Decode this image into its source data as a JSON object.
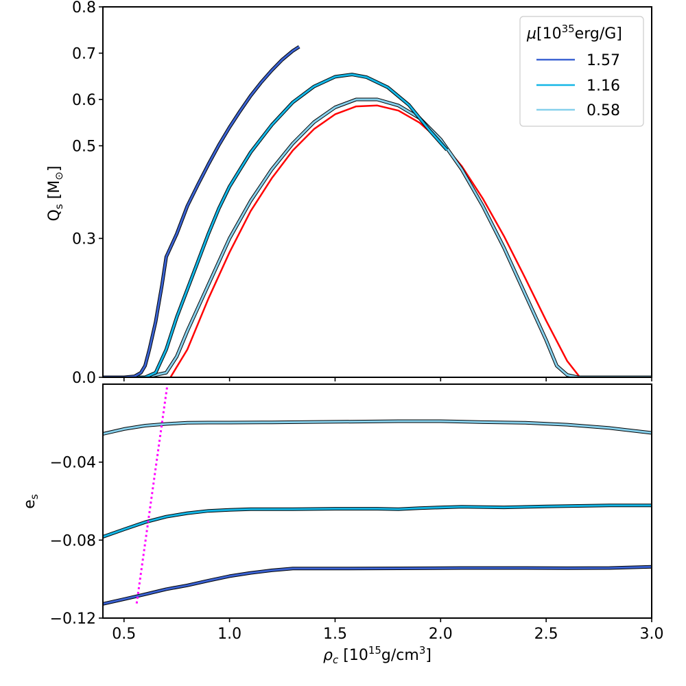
{
  "colors": {
    "dark_blue": "#3a62d2",
    "mid_blue": "#14b6e6",
    "light_blue": "#86d0ec",
    "red": "#ff0000",
    "magenta": "#ff00ff",
    "outline": "#000000"
  },
  "shared": {
    "xlabel_main": "ρ",
    "xlabel_sub": "c",
    "xlabel_open": " [10",
    "xlabel_exp": "15",
    "xlabel_unit": "g/cm",
    "xlabel_pow": "3",
    "xlabel_close": "]",
    "xlim": [
      0.4,
      3.0
    ],
    "xticks": [
      0.5,
      1.0,
      1.5,
      2.0,
      2.5,
      3.0
    ],
    "xtick_labels": [
      "0.5",
      "1.0",
      "1.5",
      "2.0",
      "2.5",
      "3.0"
    ]
  },
  "legend": {
    "title_mu": "μ",
    "title_open": "[10",
    "title_exp": "35",
    "title_unit": "erg/G]",
    "entries": [
      "1.57",
      "1.16",
      "0.58"
    ]
  },
  "chart_data": [
    {
      "type": "line",
      "panel": "top",
      "ylabel_main": "Q",
      "ylabel_sub": "s",
      "ylabel_unit_open": " [M",
      "ylabel_unit_sub": "⊙",
      "ylabel_unit_close": "]",
      "ylim": [
        0.0,
        0.8
      ],
      "yticks": [
        0.0,
        0.3,
        0.5,
        0.6,
        0.7,
        0.8
      ],
      "ytick_labels": [
        "0.0",
        "0.3",
        "0.5",
        "0.6",
        "0.7",
        "0.8"
      ],
      "series": [
        {
          "name": "1.57",
          "color_key": "dark_blue",
          "x": [
            0.4,
            0.5,
            0.55,
            0.58,
            0.6,
            0.62,
            0.65,
            0.68,
            0.7,
            0.75,
            0.8,
            0.85,
            0.9,
            0.95,
            1.0,
            1.05,
            1.1,
            1.15,
            1.2,
            1.25,
            1.3,
            1.33
          ],
          "y": [
            0.0,
            0.0,
            0.002,
            0.01,
            0.025,
            0.06,
            0.12,
            0.2,
            0.26,
            0.31,
            0.37,
            0.416,
            0.46,
            0.502,
            0.54,
            0.575,
            0.608,
            0.637,
            0.663,
            0.686,
            0.705,
            0.714
          ]
        },
        {
          "name": "1.16",
          "color_key": "mid_blue",
          "x": [
            0.4,
            0.6,
            0.65,
            0.7,
            0.75,
            0.8,
            0.85,
            0.9,
            0.95,
            1.0,
            1.1,
            1.2,
            1.3,
            1.4,
            1.5,
            1.58,
            1.65,
            1.75,
            1.85,
            1.95,
            2.03
          ],
          "y": [
            0.0,
            0.0,
            0.01,
            0.06,
            0.13,
            0.19,
            0.25,
            0.31,
            0.365,
            0.412,
            0.486,
            0.545,
            0.594,
            0.628,
            0.649,
            0.654,
            0.648,
            0.626,
            0.588,
            0.532,
            0.491
          ]
        },
        {
          "name": "0.58",
          "color_key": "light_blue",
          "x": [
            0.4,
            0.6,
            0.7,
            0.75,
            0.8,
            0.9,
            1.0,
            1.1,
            1.2,
            1.3,
            1.4,
            1.5,
            1.6,
            1.7,
            1.8,
            1.9,
            2.0,
            2.1,
            2.2,
            2.3,
            2.4,
            2.5,
            2.55,
            2.6,
            2.65,
            3.0
          ],
          "y": [
            0.0,
            0.0,
            0.01,
            0.045,
            0.1,
            0.2,
            0.3,
            0.381,
            0.449,
            0.505,
            0.551,
            0.583,
            0.6,
            0.6,
            0.587,
            0.56,
            0.514,
            0.449,
            0.37,
            0.28,
            0.18,
            0.08,
            0.025,
            0.005,
            0.0,
            0.0
          ]
        },
        {
          "name": "red",
          "color_key": "red",
          "x": [
            0.72,
            0.8,
            0.9,
            1.0,
            1.1,
            1.2,
            1.3,
            1.4,
            1.5,
            1.6,
            1.7,
            1.8,
            1.9,
            2.0,
            2.1,
            2.2,
            2.3,
            2.4,
            2.5,
            2.6,
            2.66,
            3.0
          ],
          "y": [
            0.0,
            0.06,
            0.17,
            0.27,
            0.359,
            0.43,
            0.49,
            0.536,
            0.568,
            0.585,
            0.587,
            0.576,
            0.55,
            0.51,
            0.456,
            0.386,
            0.305,
            0.215,
            0.122,
            0.035,
            0.0,
            0.0
          ]
        }
      ]
    },
    {
      "type": "line",
      "panel": "bottom",
      "ylabel_main": "e",
      "ylabel_sub": "s",
      "ylim": [
        -0.12,
        -0.0
      ]
    }
  ],
  "bottom_extra": {
    "ylim": [
      -0.12,
      0.0
    ],
    "yticks": [
      -0.12,
      -0.08,
      -0.04
    ],
    "ytick_labels": [
      "−0.12",
      "−0.08",
      "−0.04"
    ],
    "series": [
      {
        "name": "0.58",
        "color_key": "light_blue",
        "x": [
          0.4,
          0.5,
          0.6,
          0.7,
          0.8,
          0.9,
          1.0,
          1.2,
          1.4,
          1.6,
          1.8,
          2.0,
          2.1,
          2.2,
          2.4,
          2.6,
          2.8,
          3.0
        ],
        "y": [
          -0.0255,
          -0.023,
          -0.0213,
          -0.0204,
          -0.0198,
          -0.0197,
          -0.0197,
          -0.0196,
          -0.0194,
          -0.0192,
          -0.019,
          -0.019,
          -0.0192,
          -0.0195,
          -0.0198,
          -0.0208,
          -0.0225,
          -0.025
        ]
      },
      {
        "name": "1.16",
        "color_key": "mid_blue",
        "x": [
          0.4,
          0.5,
          0.6,
          0.7,
          0.8,
          0.9,
          1.0,
          1.1,
          1.3,
          1.5,
          1.7,
          1.8,
          1.9,
          2.1,
          2.3,
          2.5,
          2.8,
          3.0
        ],
        "y": [
          -0.0783,
          -0.0745,
          -0.0708,
          -0.068,
          -0.0662,
          -0.065,
          -0.0645,
          -0.0641,
          -0.0641,
          -0.0639,
          -0.0639,
          -0.0641,
          -0.0636,
          -0.0629,
          -0.0632,
          -0.0627,
          -0.0622,
          -0.0622
        ]
      },
      {
        "name": "1.57",
        "color_key": "dark_blue",
        "x": [
          0.4,
          0.5,
          0.6,
          0.7,
          0.8,
          0.9,
          1.0,
          1.1,
          1.2,
          1.3,
          1.5,
          1.8,
          2.1,
          2.4,
          2.6,
          2.8,
          3.0
        ],
        "y": [
          -0.1127,
          -0.1103,
          -0.1078,
          -0.1052,
          -0.1032,
          -0.1008,
          -0.0985,
          -0.0968,
          -0.0955,
          -0.0946,
          -0.0946,
          -0.0945,
          -0.0943,
          -0.0943,
          -0.0944,
          -0.0943,
          -0.0937
        ]
      }
    ],
    "dotted_line": {
      "color_key": "magenta",
      "x": [
        0.56,
        0.715
      ],
      "y": [
        -0.1125,
        0.0
      ]
    }
  }
}
